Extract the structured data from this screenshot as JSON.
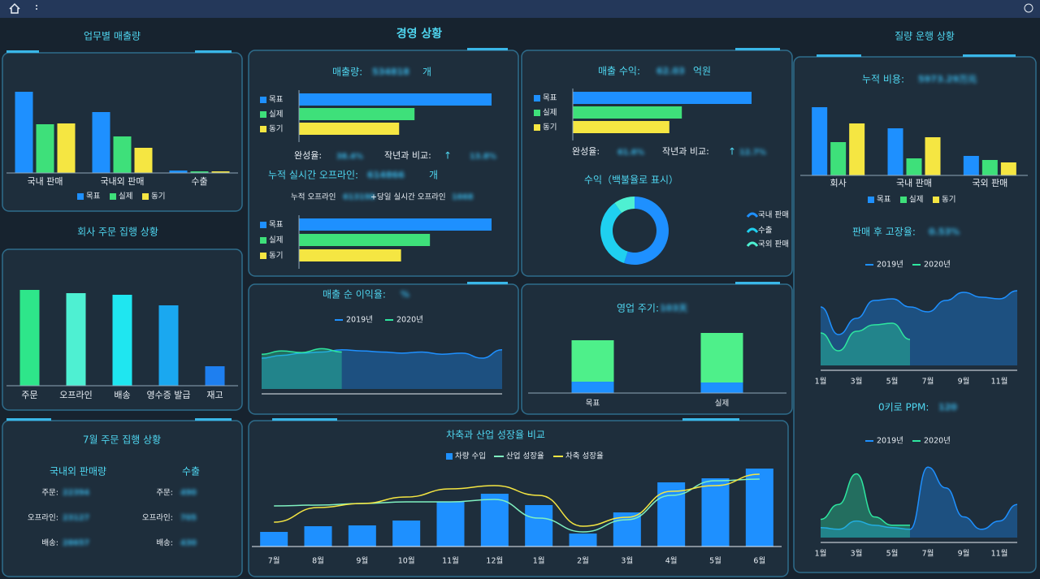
{
  "header": {
    "title": "경영 상황"
  },
  "kpi": {
    "sales_qty_label": "매출량:",
    "sales_qty_value": "534818",
    "sales_qty_unit": "개",
    "completion_label": "완성율:",
    "completion_value": "38.4%",
    "yoy_label": "작년과 비교:",
    "yoy_arrow": "↑",
    "yoy_value": "13.8%",
    "offline_label": "누적 실시간 오프라인:",
    "offline_value": "614866",
    "offline_unit": "개",
    "offline_detail_label": "누적 오프라인",
    "offline_detail_value": "613198",
    "today_label": "+당일 실시간 오프라인",
    "today_value": "1668",
    "revenue_label": "매출 수익:",
    "revenue_value": "62.03",
    "revenue_unit": "억원",
    "rev_completion_label": "완성율:",
    "rev_completion_value": "61.6%",
    "rev_yoy_label": "작년과 비교:",
    "rev_yoy_arrow": "↑",
    "rev_yoy_value": "12.7%",
    "margin_label": "매출 순 이익율:",
    "margin_value": "%",
    "cycle_label": "영업 주기:",
    "cycle_value": "103天",
    "fleet_title": "질량 운행 상황",
    "cost_label": "누적 비용:",
    "cost_value": "5973.29万元",
    "failure_label": "판매 후 고장율:",
    "failure_value": "0.53%",
    "ppm_label": "0키로 PPM:",
    "ppm_value": "120"
  },
  "july": {
    "title": "7월 주문 집행 상황",
    "domestic": "국내외 판매량",
    "export": "수출",
    "rows": [
      {
        "label": "주문:",
        "domestic": "22394",
        "export": "490"
      },
      {
        "label": "오프라인:",
        "domestic": "23127",
        "export": "705"
      },
      {
        "label": "배송:",
        "domestic": "28657",
        "export": "430"
      }
    ]
  },
  "chart_data": [
    {
      "type": "bar",
      "title": "업무별 매출량",
      "categories": [
        "국내 판매",
        "국내외 판매",
        "수출"
      ],
      "ylim": [
        0,
        100
      ],
      "series": [
        {
          "name": "목표",
          "color": "#1e90ff",
          "values": [
            100,
            75,
            3
          ]
        },
        {
          "name": "실제",
          "color": "#3ee07a",
          "values": [
            60,
            45,
            2
          ]
        },
        {
          "name": "동기",
          "color": "#f5e642",
          "values": [
            61,
            31,
            2
          ]
        }
      ]
    },
    {
      "type": "bar",
      "title": "회사 주문 집행 상황",
      "categories": [
        "주문",
        "오프라인",
        "배송",
        "영수증 발급",
        "재고"
      ],
      "values": [
        118,
        114,
        112,
        99,
        24
      ],
      "colors": [
        "#2ee68a",
        "#4ef0d2",
        "#1fe6f0",
        "#1aa8f0",
        "#1e7ff0"
      ],
      "ylim": [
        0,
        120
      ]
    },
    {
      "type": "hbar",
      "categories": [
        "목표",
        "실제",
        "동기"
      ],
      "values": [
        100,
        60,
        52
      ],
      "colors": [
        "#1e90ff",
        "#3ee07a",
        "#f5e642"
      ],
      "xlim": [
        0,
        100
      ]
    },
    {
      "type": "hbar",
      "categories": [
        "목표",
        "실제",
        "동기"
      ],
      "values": [
        100,
        68,
        53
      ],
      "colors": [
        "#1e90ff",
        "#3ee07a",
        "#f5e642"
      ],
      "xlim": [
        0,
        100
      ]
    },
    {
      "type": "hbar",
      "categories": [
        "목표",
        "실제",
        "동기"
      ],
      "values": [
        100,
        61,
        54
      ],
      "colors": [
        "#1e90ff",
        "#3ee07a",
        "#f5e642"
      ],
      "xlim": [
        0,
        100
      ]
    },
    {
      "type": "donut",
      "title": "수익（백불율로 표시）",
      "categories": [
        "국내 판매",
        "수출",
        "국외 판매"
      ],
      "values": [
        55,
        35,
        10
      ],
      "colors": [
        "#1e90ff",
        "#1fd0f0",
        "#4ef0d2"
      ]
    },
    {
      "type": "area",
      "categories": [
        null,
        null,
        null,
        null,
        null,
        null,
        null,
        null,
        null,
        null,
        null,
        null,
        null
      ],
      "ylim": [
        0,
        100
      ],
      "series": [
        {
          "name": "2019년",
          "color": "#1e90ff",
          "values": [
            55,
            60,
            64,
            66,
            70,
            68,
            66,
            64,
            66,
            62,
            64,
            55,
            70
          ]
        },
        {
          "name": "2020년",
          "color": "#2ee6a0",
          "values": [
            62,
            68,
            65,
            72,
            66,
            null,
            null,
            null,
            null,
            null,
            null,
            null,
            null
          ]
        }
      ]
    },
    {
      "type": "stacked_bar",
      "categories": [
        "목표",
        "실제"
      ],
      "ylim": [
        0,
        80
      ],
      "series": [
        {
          "color": "#1e90ff",
          "values": [
            14,
            13
          ]
        },
        {
          "color": "#4ef08a",
          "values": [
            51,
            61
          ]
        }
      ]
    },
    {
      "type": "combo",
      "title": "차축과 산업 성장율 비교",
      "categories": [
        "7월",
        "8월",
        "9월",
        "10월",
        "11월",
        "12월",
        "1월",
        "2월",
        "3월",
        "4월",
        "5월",
        "6월"
      ],
      "ylim": [
        0,
        100
      ],
      "series": [
        {
          "name": "차량 수입",
          "kind": "bar",
          "color": "#1e90ff",
          "values": [
            18,
            25,
            26,
            32,
            55,
            65,
            51,
            16,
            42,
            79,
            84,
            96
          ]
        },
        {
          "name": "산업 성장율",
          "kind": "line",
          "color": "#7ff0c0",
          "values": [
            50,
            51,
            53,
            55,
            55,
            58,
            35,
            18,
            33,
            63,
            81,
            83
          ]
        },
        {
          "name": "차축 성장율",
          "kind": "line",
          "color": "#f5e642",
          "values": [
            30,
            48,
            53,
            61,
            71,
            75,
            63,
            25,
            36,
            68,
            75,
            89
          ]
        }
      ]
    },
    {
      "type": "bar",
      "categories": [
        "회사",
        "국내 판매",
        "국외 판매"
      ],
      "ylim": [
        0,
        100
      ],
      "series": [
        {
          "name": "목표",
          "color": "#1e90ff",
          "values": [
            84,
            58,
            24
          ]
        },
        {
          "name": "실제",
          "color": "#3ee07a",
          "values": [
            41,
            21,
            19
          ]
        },
        {
          "name": "동기",
          "color": "#f5e642",
          "values": [
            64,
            47,
            16
          ]
        }
      ]
    },
    {
      "type": "area",
      "categories": [
        "1월",
        null,
        "3월",
        null,
        "5월",
        null,
        "7월",
        null,
        "9월",
        null,
        "11월",
        null
      ],
      "ylim": [
        0,
        100
      ],
      "series": [
        {
          "name": "2019년",
          "color": "#1e90ff",
          "values": [
            72,
            38,
            58,
            80,
            82,
            72,
            66,
            80,
            90,
            84,
            82,
            92
          ]
        },
        {
          "name": "2020년",
          "color": "#2ee6a0",
          "values": [
            40,
            18,
            42,
            50,
            52,
            32,
            null,
            null,
            null,
            null,
            null,
            null
          ]
        }
      ]
    },
    {
      "type": "area",
      "categories": [
        "1월",
        null,
        "3월",
        null,
        "5월",
        null,
        "7월",
        null,
        "9월",
        null,
        "11월",
        null
      ],
      "ylim": [
        0,
        100
      ],
      "series": [
        {
          "name": "2019년",
          "color": "#1e90ff",
          "values": [
            12,
            10,
            20,
            15,
            12,
            10,
            85,
            60,
            25,
            10,
            20,
            40
          ]
        },
        {
          "name": "2020년",
          "color": "#2ee6a0",
          "values": [
            22,
            40,
            77,
            25,
            15,
            15,
            null,
            null,
            null,
            null,
            null,
            null
          ]
        }
      ]
    }
  ]
}
